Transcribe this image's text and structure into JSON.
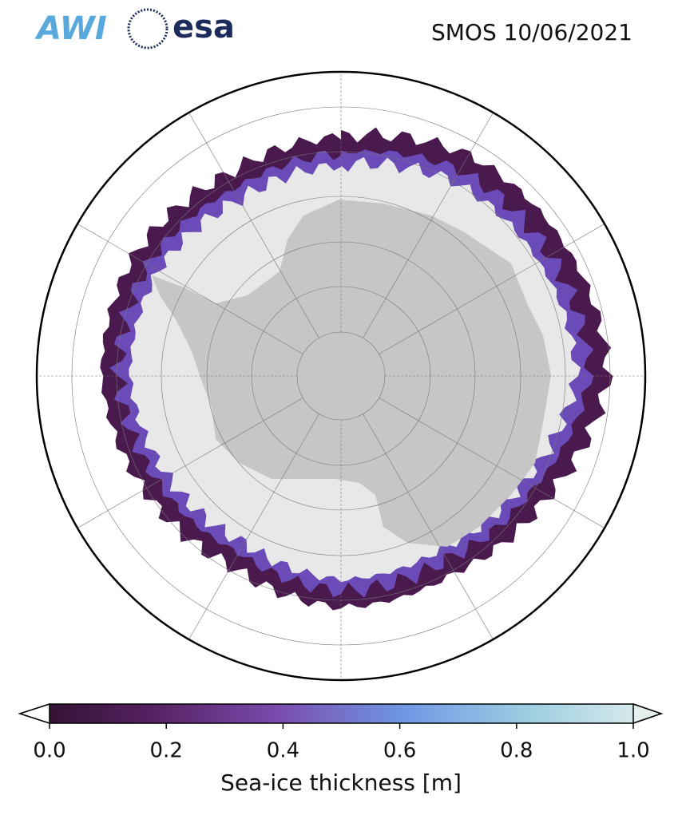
{
  "header": {
    "logos": [
      "AWI",
      "esa"
    ],
    "title": "SMOS 10/06/2021"
  },
  "colorbar": {
    "lim": [
      0,
      1
    ],
    "ticks": [
      {
        "value": 0,
        "label": "0.0"
      },
      {
        "value": 0.2,
        "label": "0.2"
      },
      {
        "value": 0.4,
        "label": "0.4"
      },
      {
        "value": 0.6,
        "label": "0.6"
      },
      {
        "value": 0.8,
        "label": "0.8"
      },
      {
        "value": 1,
        "label": "1.0"
      }
    ],
    "label": "Sea-ice thickness [m]"
  }
}
